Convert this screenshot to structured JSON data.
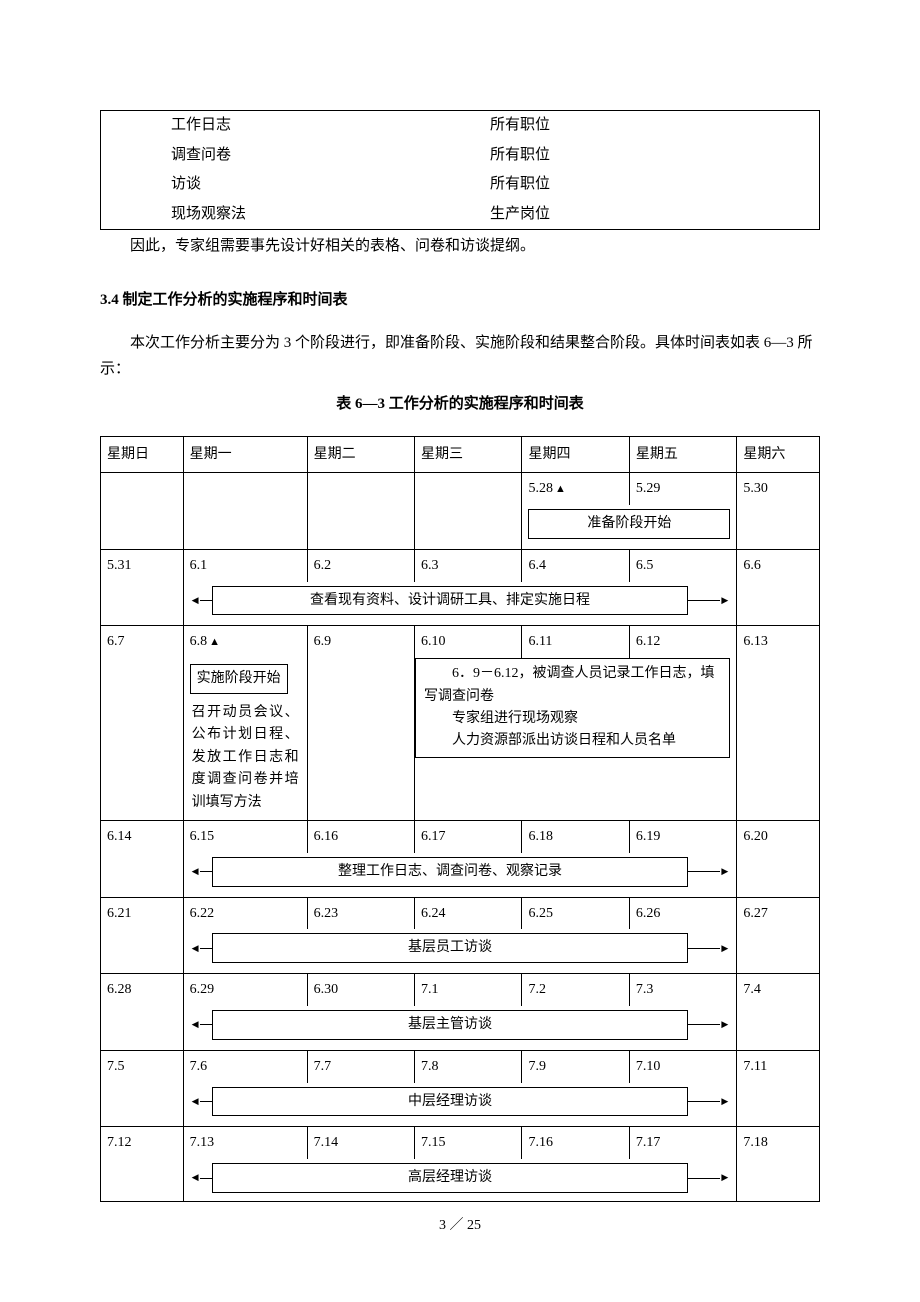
{
  "top_table": {
    "rows": [
      {
        "c1": "工作日志",
        "c2": "所有职位"
      },
      {
        "c1": "调查问卷",
        "c2": "所有职位"
      },
      {
        "c1": "访谈",
        "c2": "所有职位"
      },
      {
        "c1": "现场观察法",
        "c2": "生产岗位"
      }
    ]
  },
  "para1": "因此，专家组需要事先设计好相关的表格、问卷和访谈提纲。",
  "heading": "3.4 制定工作分析的实施程序和时间表",
  "body1": "本次工作分析主要分为 3 个阶段进行，即准备阶段、实施阶段和结果整合阶段。具体时间表如表 6—3 所示：",
  "caption": "表 6—3   工作分析的实施程序和时间表",
  "days": [
    "星期日",
    "星期一",
    "星期二",
    "星期三",
    "星期四",
    "星期五",
    "星期六"
  ],
  "w1": {
    "d4": "5.28",
    "d5": "5.29",
    "d6": "5.30",
    "bar": "准备阶段开始"
  },
  "w2": {
    "d0": "5.31",
    "d1": "6.1",
    "d2": "6.2",
    "d3": "6.3",
    "d4": "6.4",
    "d5": "6.5",
    "d6": "6.6",
    "bar": "查看现有资料、设计调研工具、排定实施日程"
  },
  "w3": {
    "d0": "6.7",
    "d1": "6.8",
    "d2": "6.9",
    "d3": "6.10",
    "d4": "6.11",
    "d5": "6.12",
    "d6": "6.13",
    "start_box": "实施阶段开始",
    "mon_text": "召开动员会议、公布计划日程、发放工作日志和度调查问卷并培训填写方法",
    "detail": "　　6．9－6.12，被调查人员记录工作日志，填写调查问卷\n　　专家组进行现场观察\n　　人力资源部派出访谈日程和人员名单"
  },
  "w4": {
    "d0": "6.14",
    "d1": "6.15",
    "d2": "6.16",
    "d3": "6.17",
    "d4": "6.18",
    "d5": "6.19",
    "d6": "6.20",
    "bar": "整理工作日志、调查问卷、观察记录"
  },
  "w5": {
    "d0": "6.21",
    "d1": "6.22",
    "d2": "6.23",
    "d3": "6.24",
    "d4": "6.25",
    "d5": "6.26",
    "d6": "6.27",
    "bar": "基层员工访谈"
  },
  "w6": {
    "d0": "6.28",
    "d1": "6.29",
    "d2": "6.30",
    "d3": "7.1",
    "d4": "7.2",
    "d5": "7.3",
    "d6": "7.4",
    "bar": "基层主管访谈"
  },
  "w7": {
    "d0": "7.5",
    "d1": "7.6",
    "d2": "7.7",
    "d3": "7.8",
    "d4": "7.9",
    "d5": "7.10",
    "d6": "7.11",
    "bar": "中层经理访谈"
  },
  "w8": {
    "d0": "7.12",
    "d1": "7.13",
    "d2": "7.14",
    "d3": "7.15",
    "d4": "7.16",
    "d5": "7.17",
    "d6": "7.18",
    "bar": "高层经理访谈"
  },
  "footer": "3 ／ 25"
}
